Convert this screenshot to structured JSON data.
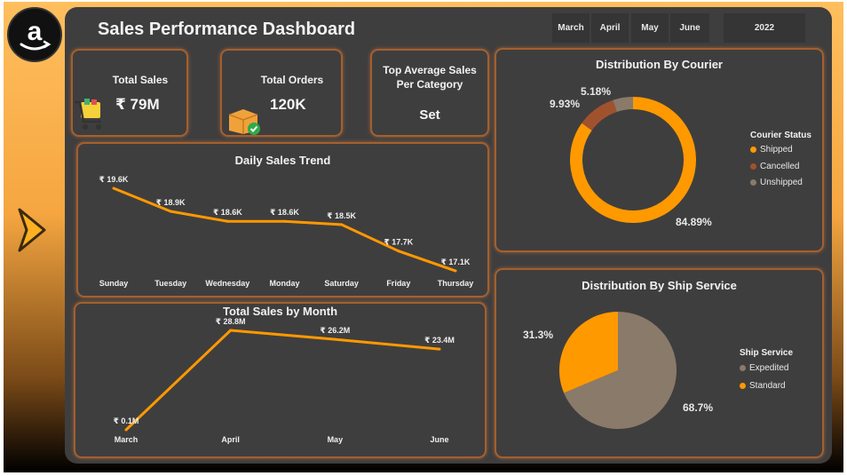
{
  "header": {
    "title": "Sales Performance Dashboard",
    "months": [
      "March",
      "April",
      "May",
      "June"
    ],
    "year": "2022"
  },
  "kpis": {
    "total_sales_label": "Total Sales",
    "total_sales_value": "₹ 79M",
    "total_orders_label": "Total Orders",
    "total_orders_value": "120K",
    "top_category_label": "Top Average Sales Per Category",
    "top_category_value": "Set"
  },
  "colors": {
    "orange": "#ff9900",
    "brown": "#a0522d",
    "taupe": "#8a7a6a",
    "background": "#3f3e3e"
  },
  "icons": [
    "amazon-logo",
    "shopping-cart-icon",
    "box-check-icon",
    "chevron-right-icon"
  ],
  "chart_data": [
    {
      "id": "daily_trend",
      "type": "line",
      "title": "Daily Sales Trend",
      "categories": [
        "Sunday",
        "Tuesday",
        "Wednesday",
        "Monday",
        "Saturday",
        "Friday",
        "Thursday"
      ],
      "values": [
        19.6,
        18.9,
        18.6,
        18.6,
        18.5,
        17.7,
        17.1
      ],
      "labels": [
        "₹ 19.6K",
        "₹ 18.9K",
        "₹ 18.6K",
        "₹ 18.6K",
        "₹ 18.5K",
        "₹ 17.7K",
        "₹ 17.1K"
      ],
      "ylim": [
        17.1,
        19.6
      ]
    },
    {
      "id": "monthly_sales",
      "type": "line",
      "title": "Total Sales by Month",
      "categories": [
        "March",
        "April",
        "May",
        "June"
      ],
      "values": [
        0.1,
        28.8,
        26.2,
        23.4
      ],
      "labels": [
        "₹ 0.1M",
        "₹ 28.8M",
        "₹ 26.2M",
        "₹ 23.4M"
      ],
      "ylim": [
        0.1,
        28.8
      ]
    },
    {
      "id": "courier",
      "type": "pie",
      "donut": true,
      "title": "Distribution By Courier",
      "legend_title": "Courier Status",
      "labels": [
        "Shipped",
        "Cancelled",
        "Unshipped"
      ],
      "values": [
        84.89,
        9.93,
        5.18
      ],
      "value_labels": [
        "84.89%",
        "9.93%",
        "5.18%"
      ],
      "colors": [
        "#ff9900",
        "#a0522d",
        "#8a7a6a"
      ]
    },
    {
      "id": "ship_service",
      "type": "pie",
      "title": "Distribution By Ship Service",
      "legend_title": "Ship Service",
      "labels": [
        "Expedited",
        "Standard"
      ],
      "values": [
        68.7,
        31.3
      ],
      "value_labels": [
        "68.7%",
        "31.3%"
      ],
      "colors": [
        "#8a7a6a",
        "#ff9900"
      ]
    }
  ]
}
